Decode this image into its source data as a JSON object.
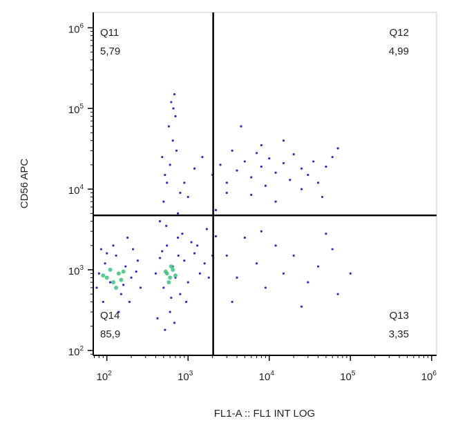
{
  "chart_data": {
    "type": "scatter",
    "x_label": "FL1-A :: FL1 INT LOG",
    "y_label": "CD56 APC",
    "xscale": "log",
    "yscale": "log",
    "xlim": [
      68,
      1150000
    ],
    "ylim": [
      87,
      1550000
    ],
    "xticks": [
      {
        "value": 100,
        "label": "10",
        "exponent": "2"
      },
      {
        "value": 1000,
        "label": "10",
        "exponent": "3"
      },
      {
        "value": 10000,
        "label": "10",
        "exponent": "4"
      },
      {
        "value": 100000,
        "label": "10",
        "exponent": "5"
      },
      {
        "value": 1000000,
        "label": "10",
        "exponent": "6"
      }
    ],
    "yticks": [
      {
        "value": 100,
        "label": "10",
        "exponent": "2"
      },
      {
        "value": 1000,
        "label": "10",
        "exponent": "3"
      },
      {
        "value": 10000,
        "label": "10",
        "exponent": "4"
      },
      {
        "value": 100000,
        "label": "10",
        "exponent": "5"
      },
      {
        "value": 1000000,
        "label": "10",
        "exponent": "6"
      }
    ],
    "gates": {
      "x": 2040,
      "y": 4730
    },
    "quadrants": [
      {
        "name": "Q11",
        "value": 5.79,
        "value_label": "5,79",
        "corner": "top-left"
      },
      {
        "name": "Q12",
        "value": 4.99,
        "value_label": "4,99",
        "corner": "top-right"
      },
      {
        "name": "Q13",
        "value": 3.35,
        "value_label": "3,35",
        "corner": "bottom-right"
      },
      {
        "name": "Q14",
        "value": 85.9,
        "value_label": "85,9",
        "corner": "bottom-left"
      }
    ],
    "color": "#2a2ad0",
    "x": [
      80,
      95,
      110,
      130,
      150,
      170,
      200,
      240,
      90,
      120,
      180,
      260,
      75,
      140,
      210,
      100,
      160,
      230,
      85,
      190,
      400,
      450,
      500,
      550,
      600,
      650,
      700,
      750,
      800,
      900,
      1000,
      1200,
      1400,
      420,
      520,
      680,
      850,
      1100,
      480,
      620,
      760,
      950,
      1300,
      1600,
      1800,
      2000,
      2200,
      1700,
      450,
      500,
      550,
      600,
      650,
      700,
      620,
      680,
      580,
      720,
      520,
      800,
      480,
      750,
      660,
      540,
      900,
      1200,
      1500,
      2000,
      2500,
      3000,
      3500,
      4000,
      5000,
      6000,
      7000,
      8000,
      9000,
      10000,
      12000,
      15000,
      18000,
      20000,
      25000,
      30000,
      35000,
      40000,
      50000,
      60000,
      70000,
      3000,
      6000,
      15000,
      4500,
      25000,
      45000,
      1000,
      8000,
      2200,
      12000,
      3000,
      4000,
      5000,
      7000,
      9000,
      12000,
      15000,
      20000,
      30000,
      40000,
      50000,
      70000,
      100000,
      3500,
      25000,
      60000,
      8000
    ],
    "y": [
      900,
      1200,
      700,
      1500,
      500,
      1100,
      800,
      1300,
      400,
      2000,
      2500,
      600,
      600,
      300,
      1800,
      1600,
      650,
      950,
      1800,
      400,
      900,
      1400,
      600,
      2000,
      300,
      1100,
      800,
      2500,
      500,
      1300,
      700,
      1600,
      900,
      250,
      180,
      220,
      2800,
      2200,
      1700,
      450,
      1500,
      400,
      2000,
      1200,
      800,
      1500,
      2600,
      3200,
      4000,
      7000,
      12000,
      20000,
      40000,
      80000,
      120000,
      150000,
      60000,
      30000,
      15000,
      9000,
      25000,
      5000,
      100000,
      3500,
      12000,
      18000,
      25000,
      15000,
      20000,
      12000,
      30000,
      17000,
      22000,
      14000,
      28000,
      19000,
      11000,
      24000,
      16000,
      21000,
      13000,
      27000,
      18000,
      15000,
      22000,
      12000,
      19000,
      25000,
      32000,
      9000,
      8500,
      40000,
      60000,
      10000,
      8000,
      8000,
      35000,
      5500,
      7000,
      1500,
      800,
      2500,
      1200,
      600,
      2000,
      900,
      1500,
      700,
      1100,
      2800,
      500,
      900,
      400,
      350,
      1800,
      3000
    ],
    "core": {
      "color": "#3cc47a",
      "x": [
        100,
        120,
        140,
        110,
        130,
        150,
        90,
        160,
        550,
        600,
        650,
        580,
        620,
        700,
        530
      ],
      "y": [
        800,
        700,
        900,
        1000,
        600,
        750,
        850,
        950,
        900,
        800,
        1000,
        700,
        1100,
        850,
        950
      ]
    }
  }
}
